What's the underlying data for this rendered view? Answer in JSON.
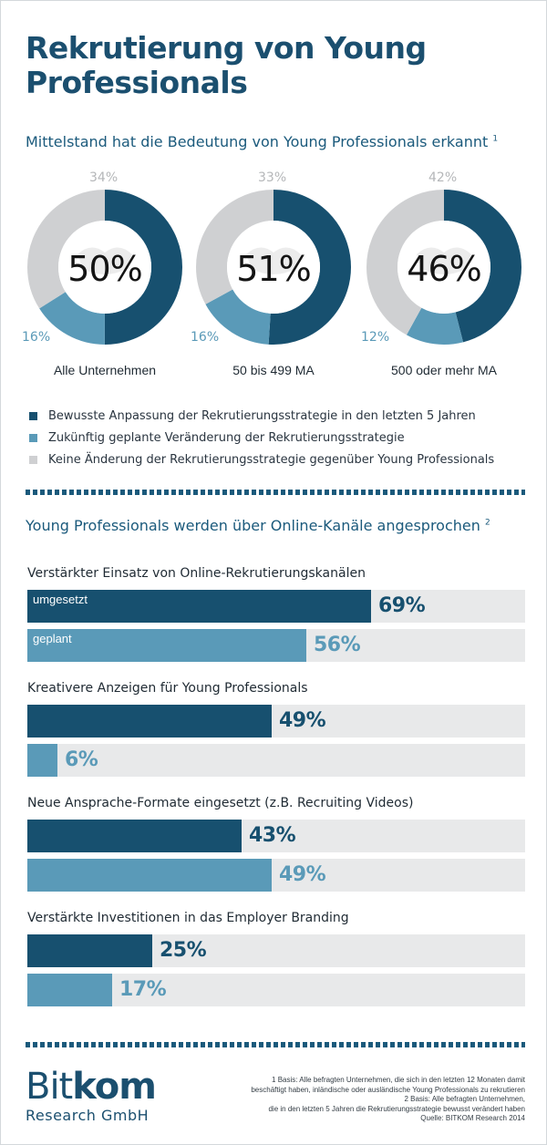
{
  "title": "Rekrutierung von Young Professionals",
  "section1": {
    "title": "Mittelstand hat die Bedeutung von Young Professionals erkannt",
    "footnote_marker": "1"
  },
  "section2": {
    "title": "Young Professionals werden über Online-Kanäle angesprochen",
    "footnote_marker": "2"
  },
  "colors": {
    "dark": "#17506f",
    "light": "#5a9ab8",
    "gray": "#cfd0d2",
    "track": "#e8e9ea",
    "title": "#1b4f6f"
  },
  "chart_data": [
    {
      "type": "pie",
      "title": "Mittelstand hat die Bedeutung von Young Professionals erkannt",
      "categories": [
        "Alle Unternehmen",
        "50 bis 499 MA",
        "500 oder mehr MA"
      ],
      "series": [
        {
          "name": "Bewusste Anpassung der Rekrutierungsstrategie in den letzten 5 Jahren",
          "values": [
            50,
            51,
            46
          ],
          "labels": [
            "50%",
            "51%",
            "46%"
          ],
          "color": "#17506f"
        },
        {
          "name": "Zukünftig geplante Veränderung der Rekrutierungsstrategie",
          "values": [
            16,
            16,
            12
          ],
          "labels": [
            "16%",
            "16%",
            "12%"
          ],
          "color": "#5a9ab8"
        },
        {
          "name": "Keine Änderung der Rekrutierungsstrategie gegenüber Young Professionals",
          "values": [
            34,
            33,
            42
          ],
          "labels": [
            "34%",
            "33%",
            "42%"
          ],
          "color": "#cfd0d2"
        }
      ],
      "legend_position": "bottom"
    },
    {
      "type": "bar",
      "title": "Young Professionals werden über Online-Kanäle angesprochen",
      "ylim": [
        0,
        100
      ],
      "categories": [
        "Verstärkter Einsatz von Online-Rekrutierungskanälen",
        "Kreativere Anzeigen für Young Professionals",
        "Neue Ansprache-Formate eingesetzt (z.B. Recruiting Videos)",
        "Verstärkte Investitionen in das Employer Branding"
      ],
      "series": [
        {
          "name": "umgesetzt",
          "values": [
            69,
            49,
            43,
            25
          ],
          "labels": [
            "69%",
            "49%",
            "43%",
            "25%"
          ],
          "color": "#17506f"
        },
        {
          "name": "geplant",
          "values": [
            56,
            6,
            49,
            17
          ],
          "labels": [
            "56%",
            "6%",
            "49%",
            "17%"
          ],
          "color": "#5a9ab8"
        }
      ]
    }
  ],
  "logo": {
    "word_part1": "Bit",
    "word_part2": "kom",
    "subtitle": "Research GmbH"
  },
  "footnotes": [
    "1 Basis: Alle befragten Unternehmen, die sich in den letzten 12 Monaten damit",
    "beschäftigt haben, inländische oder ausländische Young Professionals zu rekrutieren",
    "2 Basis: Alle befragten Unternehmen,",
    "die in den letzten 5 Jahren die Rekrutierungsstrategie bewusst verändert haben",
    "Quelle: BITKOM Research 2014"
  ]
}
